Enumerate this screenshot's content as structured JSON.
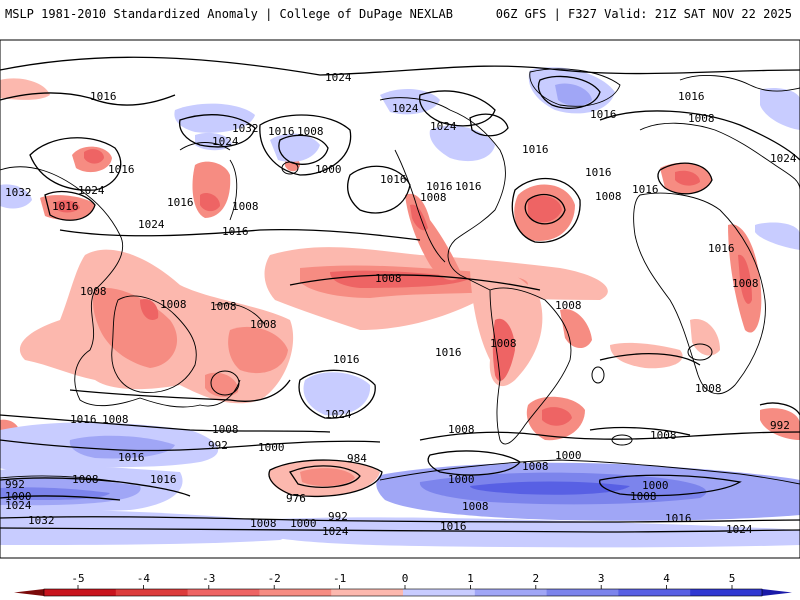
{
  "header": {
    "left": "MSLP 1981-2010 Standardized Anomaly | College of DuPage NEXLAB",
    "right": "06Z GFS | F327 Valid: 21Z SAT NOV 22 2025"
  },
  "map": {
    "product": "Mean sea-level pressure (hPa) contours with standardized anomaly shading",
    "projection": "global cylindrical",
    "contour_labels": [
      "1016",
      "1024",
      "1016",
      "1032",
      "1016",
      "1008",
      "1024",
      "1016",
      "1032",
      "1016",
      "1016",
      "1024",
      "1024",
      "1008",
      "1016",
      "1016",
      "1000",
      "1016",
      "1024",
      "1016",
      "1016",
      "1016",
      "1008",
      "1008",
      "1016",
      "1016",
      "1008",
      "1016",
      "1032",
      "1016",
      "1024",
      "1016",
      "1008",
      "1016",
      "1008",
      "1008",
      "1008",
      "1008",
      "1008",
      "1008",
      "1008",
      "1016",
      "1016",
      "1008",
      "1016",
      "1016",
      "1008",
      "1016",
      "1016",
      "1024",
      "1016",
      "1008",
      "1008",
      "992",
      "1000",
      "1008",
      "1008",
      "1000",
      "984",
      "1000",
      "992",
      "1016",
      "1008",
      "976",
      "1008",
      "1000",
      "1000",
      "1000",
      "992",
      "1024",
      "1016",
      "1016",
      "1024",
      "1024",
      "1032",
      "992",
      "1000",
      "1008",
      "1016",
      "1024"
    ]
  },
  "colorbar": {
    "ticks": [
      "-5",
      "-4",
      "-3",
      "-2",
      "-1",
      "0",
      "1",
      "2",
      "3",
      "4",
      "5"
    ],
    "colors": [
      "#c8141e",
      "#dc3c3c",
      "#ee6464",
      "#f68c82",
      "#fcb8ae",
      "#ffffff",
      "#c8ccff",
      "#a0a6f6",
      "#7c84ec",
      "#5860e4",
      "#3038d2"
    ]
  }
}
